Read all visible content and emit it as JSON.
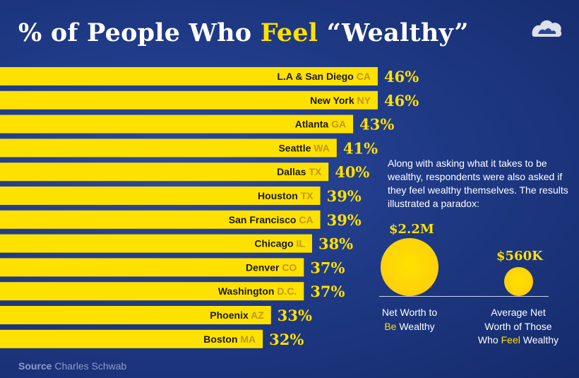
{
  "header": {
    "title_before": "% of People Who ",
    "title_highlight": "Feel",
    "title_after": " “Wealthy”"
  },
  "logo": {
    "icon": "logo-icon"
  },
  "colors": {
    "background": "#1f3a86",
    "bar": "#ffe100",
    "state_text": "#bf9a17",
    "highlight": "#ffe100"
  },
  "chart_data": {
    "type": "bar",
    "orientation": "horizontal",
    "title": "% of People Who Feel “Wealthy”",
    "categories": [
      "L.A & San Diego",
      "New York",
      "Atlanta",
      "Seattle",
      "Dallas",
      "Houston",
      "San Francisco",
      "Chicago",
      "Denver",
      "Washington",
      "Phoenix",
      "Boston"
    ],
    "state_labels": [
      "CA",
      "NY",
      "GA",
      "WA",
      "TX",
      "TX",
      "CA",
      "IL",
      "CO",
      "D.C.",
      "AZ",
      "MA"
    ],
    "values": [
      46,
      46,
      43,
      41,
      40,
      39,
      39,
      38,
      37,
      37,
      33,
      32
    ],
    "value_labels": [
      "46%",
      "46%",
      "43%",
      "41%",
      "40%",
      "39%",
      "39%",
      "38%",
      "37%",
      "37%",
      "33%",
      "32%"
    ],
    "unit": "%"
  },
  "sidebar": {
    "intro": "Along with asking what it takes to be wealthy, respondents were also asked if they feel wealthy themselves. The results illustrated a paradox:",
    "bubbles": [
      {
        "value": 2.2,
        "value_label": "$2.2M",
        "caption_line1": "Net Worth to",
        "caption_highlight": "Be",
        "caption_after": " Wealthy"
      },
      {
        "value": 0.56,
        "value_label": "$560K",
        "caption_line1": "Average Net",
        "caption_line2": "Worth of Those",
        "caption_before": "Who ",
        "caption_highlight": "Feel",
        "caption_after": " Wealthy"
      }
    ]
  },
  "footer": {
    "source_label": "Source",
    "source_text": " Charles Schwab"
  }
}
